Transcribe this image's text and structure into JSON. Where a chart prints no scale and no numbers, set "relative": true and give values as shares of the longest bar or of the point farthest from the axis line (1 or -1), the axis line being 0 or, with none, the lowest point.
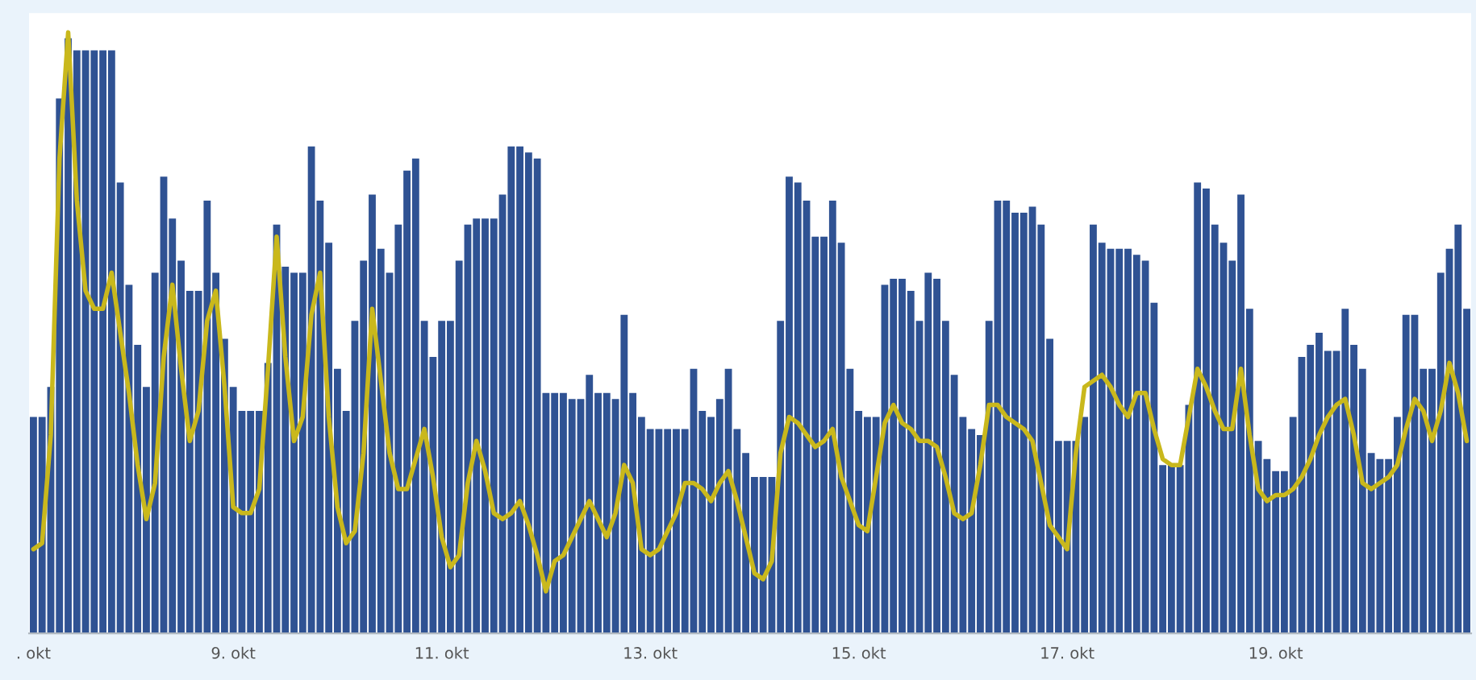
{
  "chart_data": {
    "type": "bar",
    "relative": true,
    "legend": false,
    "categories": [
      ". okt",
      null,
      null,
      null,
      null,
      null,
      null,
      null,
      null,
      null,
      null,
      null,
      null,
      null,
      null,
      null,
      null,
      null,
      null,
      null,
      null,
      null,
      null,
      "9. okt",
      null,
      null,
      null,
      null,
      null,
      null,
      null,
      null,
      null,
      null,
      null,
      null,
      null,
      null,
      null,
      null,
      null,
      null,
      null,
      null,
      null,
      null,
      null,
      "11. okt",
      null,
      null,
      null,
      null,
      null,
      null,
      null,
      null,
      null,
      null,
      null,
      null,
      null,
      null,
      null,
      null,
      null,
      null,
      null,
      null,
      null,
      null,
      null,
      "13. okt",
      null,
      null,
      null,
      null,
      null,
      null,
      null,
      null,
      null,
      null,
      null,
      null,
      null,
      null,
      null,
      null,
      null,
      null,
      null,
      null,
      null,
      null,
      null,
      "15. okt",
      null,
      null,
      null,
      null,
      null,
      null,
      null,
      null,
      null,
      null,
      null,
      null,
      null,
      null,
      null,
      null,
      null,
      null,
      null,
      null,
      null,
      null,
      null,
      "17. okt",
      null,
      null,
      null,
      null,
      null,
      null,
      null,
      null,
      null,
      null,
      null,
      null,
      null,
      null,
      null,
      null,
      null,
      null,
      null,
      null,
      null,
      null,
      null,
      "19. okt",
      null,
      null,
      null,
      null,
      null,
      null,
      null,
      null,
      null,
      null,
      null,
      null,
      null,
      null,
      null,
      null,
      null,
      null,
      null,
      null,
      null,
      null
    ],
    "series": [
      {
        "color": "#2f5293",
        "values": [
          0.36,
          0.36,
          0.41,
          0.89,
          0.99,
          0.97,
          0.97,
          0.97,
          0.97,
          0.97,
          0.75,
          0.58,
          0.48,
          0.41,
          0.6,
          0.76,
          0.69,
          0.62,
          0.57,
          0.57,
          0.72,
          0.6,
          0.49,
          0.41,
          0.37,
          0.37,
          0.37,
          0.45,
          0.68,
          0.61,
          0.6,
          0.6,
          0.81,
          0.72,
          0.65,
          0.44,
          0.37,
          0.52,
          0.62,
          0.73,
          0.64,
          0.6,
          0.68,
          0.77,
          0.79,
          0.52,
          0.46,
          0.52,
          0.52,
          0.62,
          0.68,
          0.69,
          0.69,
          0.69,
          0.73,
          0.81,
          0.81,
          0.8,
          0.79,
          0.4,
          0.4,
          0.4,
          0.39,
          0.39,
          0.43,
          0.4,
          0.4,
          0.39,
          0.53,
          0.4,
          0.36,
          0.34,
          0.34,
          0.34,
          0.34,
          0.34,
          0.44,
          0.37,
          0.36,
          0.39,
          0.44,
          0.34,
          0.3,
          0.26,
          0.26,
          0.26,
          0.52,
          0.76,
          0.75,
          0.72,
          0.66,
          0.66,
          0.72,
          0.65,
          0.44,
          0.37,
          0.36,
          0.36,
          0.58,
          0.59,
          0.59,
          0.57,
          0.52,
          0.6,
          0.59,
          0.52,
          0.43,
          0.36,
          0.34,
          0.33,
          0.52,
          0.72,
          0.72,
          0.7,
          0.7,
          0.71,
          0.68,
          0.49,
          0.32,
          0.32,
          0.32,
          0.36,
          0.68,
          0.65,
          0.64,
          0.64,
          0.64,
          0.63,
          0.62,
          0.55,
          0.28,
          0.28,
          0.28,
          0.38,
          0.75,
          0.74,
          0.68,
          0.65,
          0.62,
          0.73,
          0.54,
          0.32,
          0.29,
          0.27,
          0.27,
          0.36,
          0.46,
          0.48,
          0.5,
          0.47,
          0.47,
          0.54,
          0.48,
          0.44,
          0.3,
          0.29,
          0.29,
          0.36,
          0.53,
          0.53,
          0.44,
          0.44,
          0.6,
          0.64,
          0.68,
          0.54
        ]
      },
      {
        "type": "line",
        "color": "#c9b81c",
        "values": [
          0.14,
          0.15,
          0.33,
          0.79,
          1.0,
          0.72,
          0.57,
          0.54,
          0.54,
          0.6,
          0.5,
          0.4,
          0.28,
          0.19,
          0.25,
          0.46,
          0.58,
          0.44,
          0.32,
          0.37,
          0.52,
          0.57,
          0.41,
          0.21,
          0.2,
          0.2,
          0.24,
          0.44,
          0.66,
          0.46,
          0.32,
          0.36,
          0.53,
          0.6,
          0.36,
          0.21,
          0.15,
          0.17,
          0.3,
          0.54,
          0.42,
          0.3,
          0.24,
          0.24,
          0.29,
          0.34,
          0.26,
          0.16,
          0.11,
          0.13,
          0.25,
          0.32,
          0.27,
          0.2,
          0.19,
          0.2,
          0.22,
          0.18,
          0.13,
          0.07,
          0.12,
          0.13,
          0.16,
          0.19,
          0.22,
          0.19,
          0.16,
          0.2,
          0.28,
          0.25,
          0.14,
          0.13,
          0.14,
          0.17,
          0.2,
          0.25,
          0.25,
          0.24,
          0.22,
          0.25,
          0.27,
          0.22,
          0.16,
          0.1,
          0.09,
          0.12,
          0.3,
          0.36,
          0.35,
          0.33,
          0.31,
          0.32,
          0.34,
          0.26,
          0.22,
          0.18,
          0.17,
          0.26,
          0.35,
          0.38,
          0.35,
          0.34,
          0.32,
          0.32,
          0.31,
          0.26,
          0.2,
          0.19,
          0.2,
          0.28,
          0.38,
          0.38,
          0.36,
          0.35,
          0.34,
          0.32,
          0.25,
          0.18,
          0.16,
          0.14,
          0.3,
          0.41,
          0.42,
          0.43,
          0.41,
          0.38,
          0.36,
          0.4,
          0.4,
          0.34,
          0.29,
          0.28,
          0.28,
          0.36,
          0.44,
          0.41,
          0.37,
          0.34,
          0.34,
          0.44,
          0.33,
          0.24,
          0.22,
          0.23,
          0.23,
          0.24,
          0.26,
          0.29,
          0.33,
          0.36,
          0.38,
          0.39,
          0.33,
          0.25,
          0.24,
          0.25,
          0.26,
          0.28,
          0.34,
          0.39,
          0.37,
          0.32,
          0.37,
          0.45,
          0.4,
          0.32
        ]
      }
    ]
  }
}
